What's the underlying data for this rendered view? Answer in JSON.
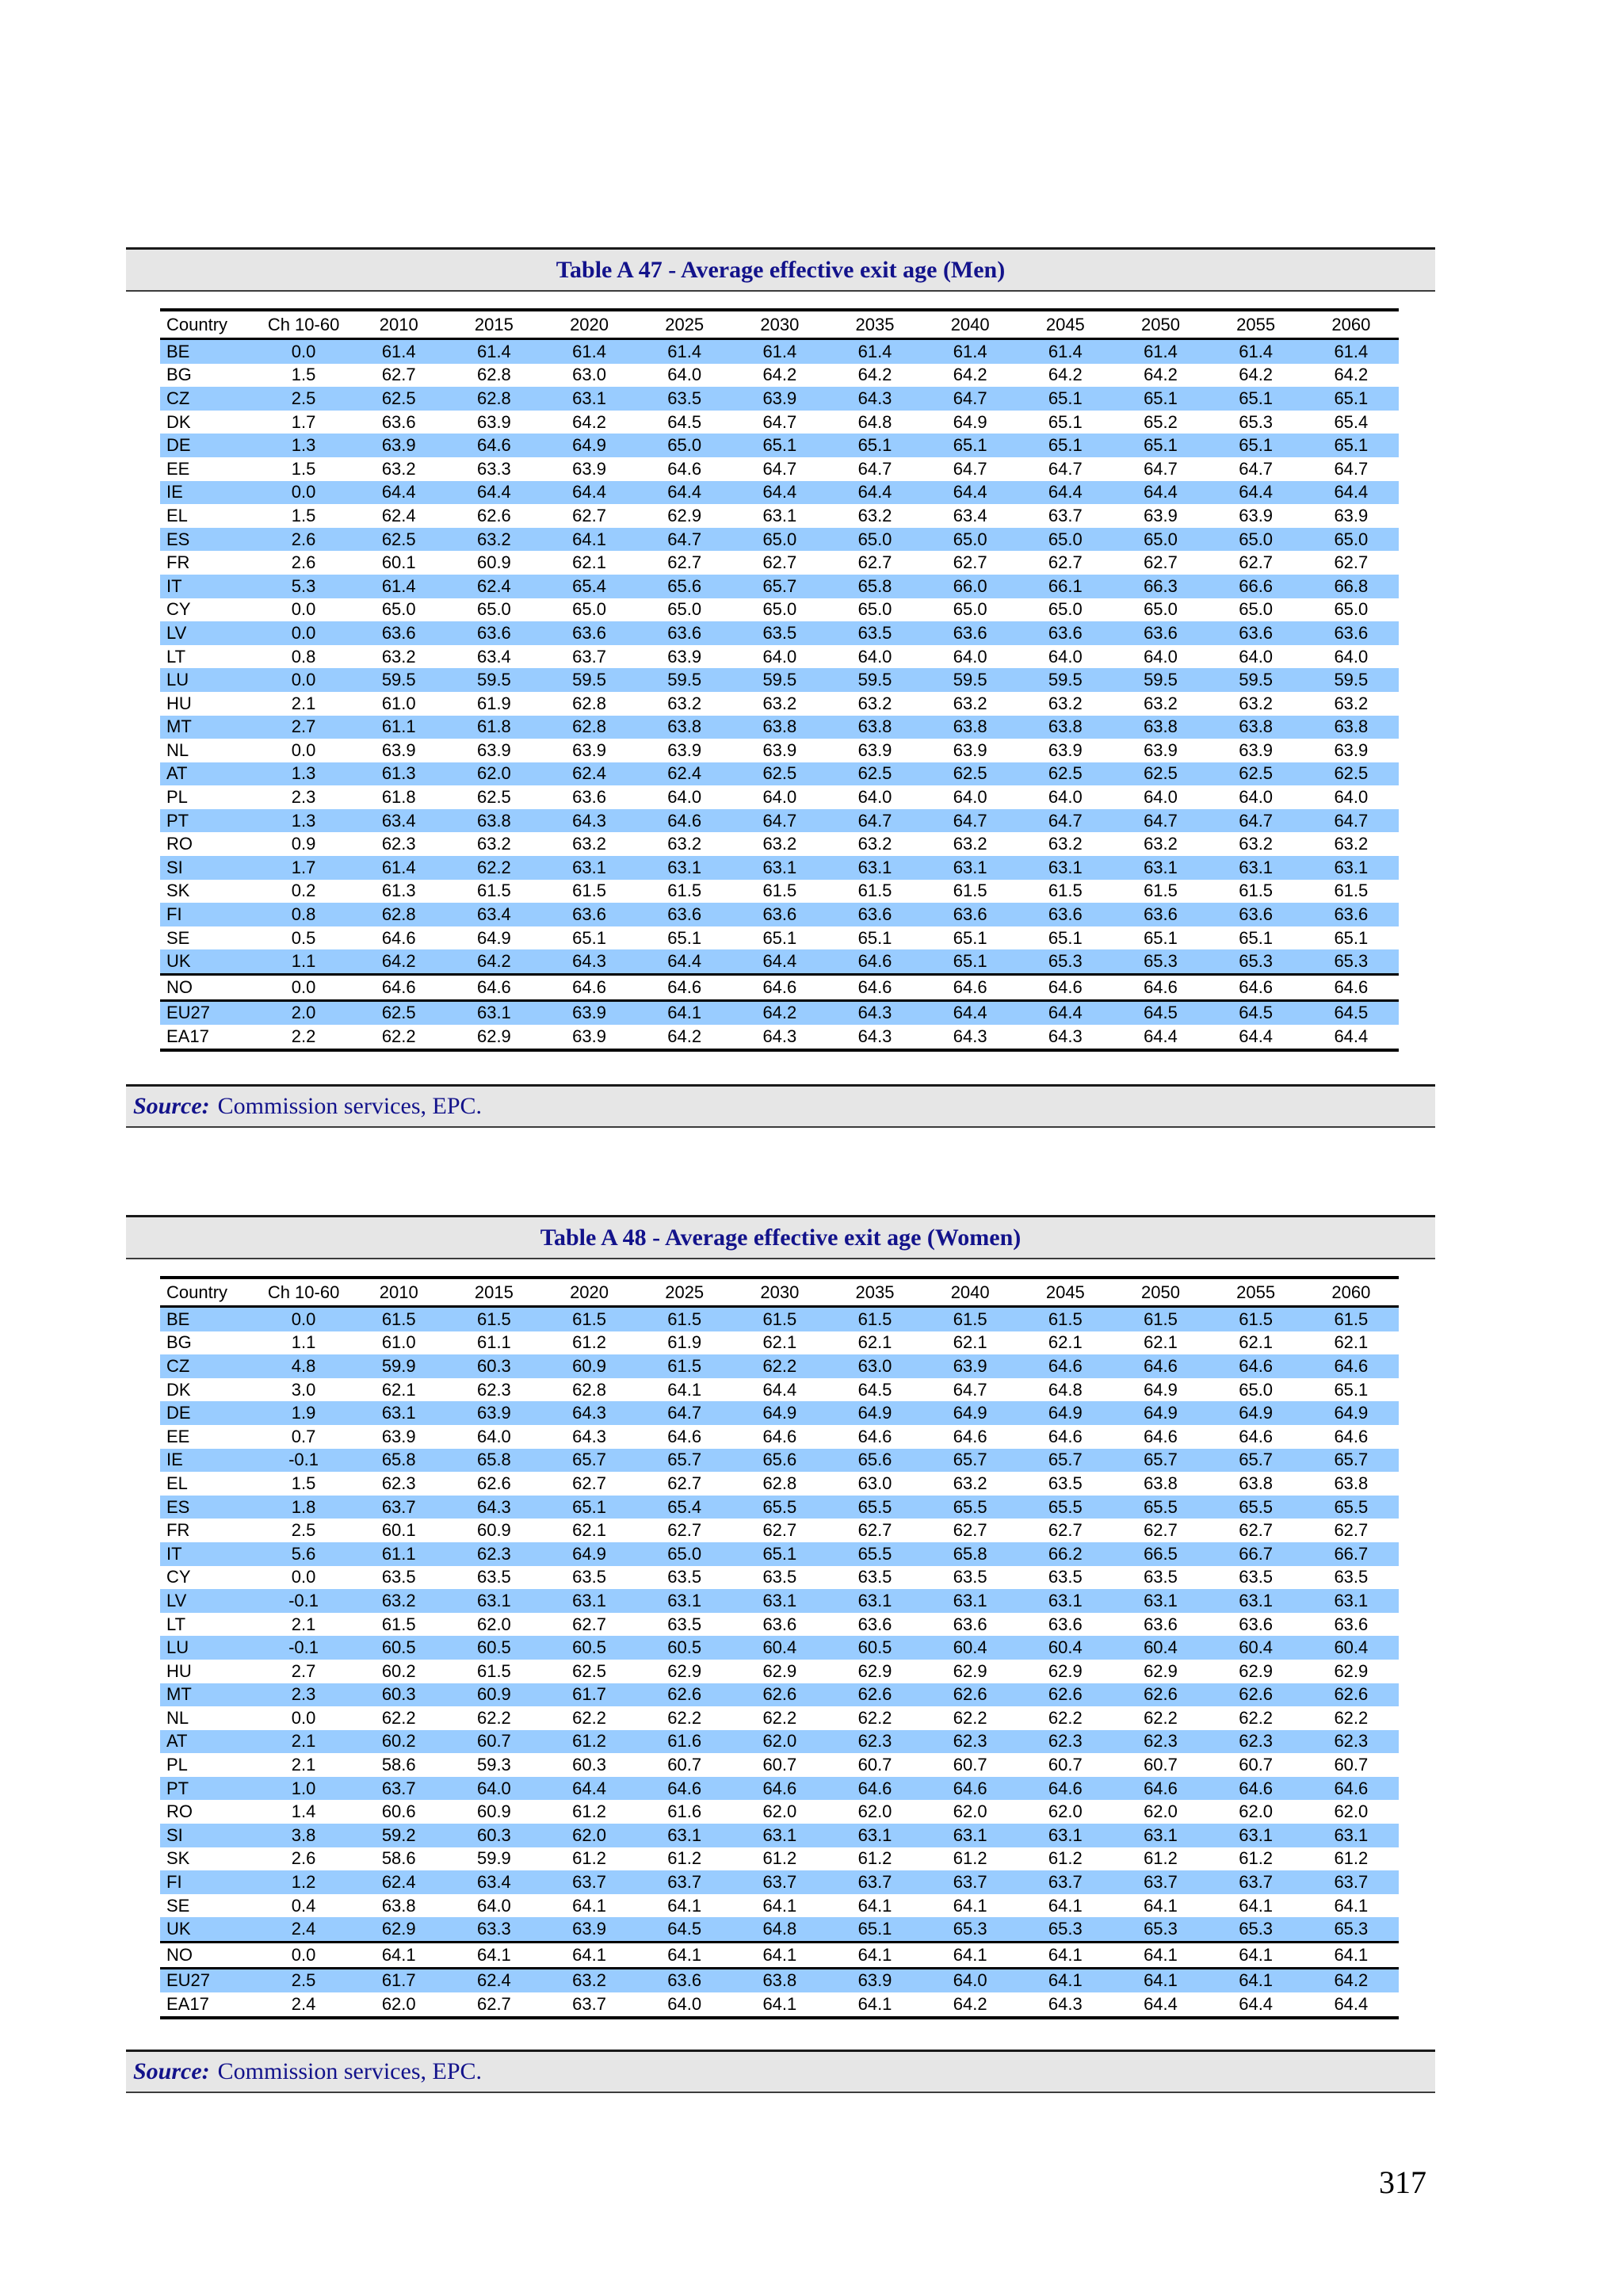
{
  "page_number": "317",
  "colors": {
    "row_highlight": "#99CCFF",
    "heading_text": "#13138B",
    "bar_background": "#E6E6E6",
    "table_text": "#000000"
  },
  "tables": [
    {
      "title": "Table A 47 - Average effective exit age (Men)",
      "source_label": "Source:",
      "source_text": "Commission services, EPC.",
      "columns": [
        "Country",
        "Ch 10-60",
        "2010",
        "2015",
        "2020",
        "2025",
        "2030",
        "2035",
        "2040",
        "2045",
        "2050",
        "2055",
        "2060"
      ],
      "separators_after": [
        "UK",
        "NO"
      ],
      "rows": [
        [
          "BE",
          "0.0",
          "61.4",
          "61.4",
          "61.4",
          "61.4",
          "61.4",
          "61.4",
          "61.4",
          "61.4",
          "61.4",
          "61.4",
          "61.4"
        ],
        [
          "BG",
          "1.5",
          "62.7",
          "62.8",
          "63.0",
          "64.0",
          "64.2",
          "64.2",
          "64.2",
          "64.2",
          "64.2",
          "64.2",
          "64.2"
        ],
        [
          "CZ",
          "2.5",
          "62.5",
          "62.8",
          "63.1",
          "63.5",
          "63.9",
          "64.3",
          "64.7",
          "65.1",
          "65.1",
          "65.1",
          "65.1"
        ],
        [
          "DK",
          "1.7",
          "63.6",
          "63.9",
          "64.2",
          "64.5",
          "64.7",
          "64.8",
          "64.9",
          "65.1",
          "65.2",
          "65.3",
          "65.4"
        ],
        [
          "DE",
          "1.3",
          "63.9",
          "64.6",
          "64.9",
          "65.0",
          "65.1",
          "65.1",
          "65.1",
          "65.1",
          "65.1",
          "65.1",
          "65.1"
        ],
        [
          "EE",
          "1.5",
          "63.2",
          "63.3",
          "63.9",
          "64.6",
          "64.7",
          "64.7",
          "64.7",
          "64.7",
          "64.7",
          "64.7",
          "64.7"
        ],
        [
          "IE",
          "0.0",
          "64.4",
          "64.4",
          "64.4",
          "64.4",
          "64.4",
          "64.4",
          "64.4",
          "64.4",
          "64.4",
          "64.4",
          "64.4"
        ],
        [
          "EL",
          "1.5",
          "62.4",
          "62.6",
          "62.7",
          "62.9",
          "63.1",
          "63.2",
          "63.4",
          "63.7",
          "63.9",
          "63.9",
          "63.9"
        ],
        [
          "ES",
          "2.6",
          "62.5",
          "63.2",
          "64.1",
          "64.7",
          "65.0",
          "65.0",
          "65.0",
          "65.0",
          "65.0",
          "65.0",
          "65.0"
        ],
        [
          "FR",
          "2.6",
          "60.1",
          "60.9",
          "62.1",
          "62.7",
          "62.7",
          "62.7",
          "62.7",
          "62.7",
          "62.7",
          "62.7",
          "62.7"
        ],
        [
          "IT",
          "5.3",
          "61.4",
          "62.4",
          "65.4",
          "65.6",
          "65.7",
          "65.8",
          "66.0",
          "66.1",
          "66.3",
          "66.6",
          "66.8"
        ],
        [
          "CY",
          "0.0",
          "65.0",
          "65.0",
          "65.0",
          "65.0",
          "65.0",
          "65.0",
          "65.0",
          "65.0",
          "65.0",
          "65.0",
          "65.0"
        ],
        [
          "LV",
          "0.0",
          "63.6",
          "63.6",
          "63.6",
          "63.6",
          "63.5",
          "63.5",
          "63.6",
          "63.6",
          "63.6",
          "63.6",
          "63.6"
        ],
        [
          "LT",
          "0.8",
          "63.2",
          "63.4",
          "63.7",
          "63.9",
          "64.0",
          "64.0",
          "64.0",
          "64.0",
          "64.0",
          "64.0",
          "64.0"
        ],
        [
          "LU",
          "0.0",
          "59.5",
          "59.5",
          "59.5",
          "59.5",
          "59.5",
          "59.5",
          "59.5",
          "59.5",
          "59.5",
          "59.5",
          "59.5"
        ],
        [
          "HU",
          "2.1",
          "61.0",
          "61.9",
          "62.8",
          "63.2",
          "63.2",
          "63.2",
          "63.2",
          "63.2",
          "63.2",
          "63.2",
          "63.2"
        ],
        [
          "MT",
          "2.7",
          "61.1",
          "61.8",
          "62.8",
          "63.8",
          "63.8",
          "63.8",
          "63.8",
          "63.8",
          "63.8",
          "63.8",
          "63.8"
        ],
        [
          "NL",
          "0.0",
          "63.9",
          "63.9",
          "63.9",
          "63.9",
          "63.9",
          "63.9",
          "63.9",
          "63.9",
          "63.9",
          "63.9",
          "63.9"
        ],
        [
          "AT",
          "1.3",
          "61.3",
          "62.0",
          "62.4",
          "62.4",
          "62.5",
          "62.5",
          "62.5",
          "62.5",
          "62.5",
          "62.5",
          "62.5"
        ],
        [
          "PL",
          "2.3",
          "61.8",
          "62.5",
          "63.6",
          "64.0",
          "64.0",
          "64.0",
          "64.0",
          "64.0",
          "64.0",
          "64.0",
          "64.0"
        ],
        [
          "PT",
          "1.3",
          "63.4",
          "63.8",
          "64.3",
          "64.6",
          "64.7",
          "64.7",
          "64.7",
          "64.7",
          "64.7",
          "64.7",
          "64.7"
        ],
        [
          "RO",
          "0.9",
          "62.3",
          "63.2",
          "63.2",
          "63.2",
          "63.2",
          "63.2",
          "63.2",
          "63.2",
          "63.2",
          "63.2",
          "63.2"
        ],
        [
          "SI",
          "1.7",
          "61.4",
          "62.2",
          "63.1",
          "63.1",
          "63.1",
          "63.1",
          "63.1",
          "63.1",
          "63.1",
          "63.1",
          "63.1"
        ],
        [
          "SK",
          "0.2",
          "61.3",
          "61.5",
          "61.5",
          "61.5",
          "61.5",
          "61.5",
          "61.5",
          "61.5",
          "61.5",
          "61.5",
          "61.5"
        ],
        [
          "FI",
          "0.8",
          "62.8",
          "63.4",
          "63.6",
          "63.6",
          "63.6",
          "63.6",
          "63.6",
          "63.6",
          "63.6",
          "63.6",
          "63.6"
        ],
        [
          "SE",
          "0.5",
          "64.6",
          "64.9",
          "65.1",
          "65.1",
          "65.1",
          "65.1",
          "65.1",
          "65.1",
          "65.1",
          "65.1",
          "65.1"
        ],
        [
          "UK",
          "1.1",
          "64.2",
          "64.2",
          "64.3",
          "64.4",
          "64.4",
          "64.6",
          "65.1",
          "65.3",
          "65.3",
          "65.3",
          "65.3"
        ],
        [
          "NO",
          "0.0",
          "64.6",
          "64.6",
          "64.6",
          "64.6",
          "64.6",
          "64.6",
          "64.6",
          "64.6",
          "64.6",
          "64.6",
          "64.6"
        ],
        [
          "EU27",
          "2.0",
          "62.5",
          "63.1",
          "63.9",
          "64.1",
          "64.2",
          "64.3",
          "64.4",
          "64.4",
          "64.5",
          "64.5",
          "64.5"
        ],
        [
          "EA17",
          "2.2",
          "62.2",
          "62.9",
          "63.9",
          "64.2",
          "64.3",
          "64.3",
          "64.3",
          "64.3",
          "64.4",
          "64.4",
          "64.4"
        ]
      ]
    },
    {
      "title": "Table A 48 - Average effective exit age (Women)",
      "source_label": "Source:",
      "source_text": "Commission services, EPC.",
      "columns": [
        "Country",
        "Ch 10-60",
        "2010",
        "2015",
        "2020",
        "2025",
        "2030",
        "2035",
        "2040",
        "2045",
        "2050",
        "2055",
        "2060"
      ],
      "separators_after": [
        "UK",
        "NO"
      ],
      "rows": [
        [
          "BE",
          "0.0",
          "61.5",
          "61.5",
          "61.5",
          "61.5",
          "61.5",
          "61.5",
          "61.5",
          "61.5",
          "61.5",
          "61.5",
          "61.5"
        ],
        [
          "BG",
          "1.1",
          "61.0",
          "61.1",
          "61.2",
          "61.9",
          "62.1",
          "62.1",
          "62.1",
          "62.1",
          "62.1",
          "62.1",
          "62.1"
        ],
        [
          "CZ",
          "4.8",
          "59.9",
          "60.3",
          "60.9",
          "61.5",
          "62.2",
          "63.0",
          "63.9",
          "64.6",
          "64.6",
          "64.6",
          "64.6"
        ],
        [
          "DK",
          "3.0",
          "62.1",
          "62.3",
          "62.8",
          "64.1",
          "64.4",
          "64.5",
          "64.7",
          "64.8",
          "64.9",
          "65.0",
          "65.1"
        ],
        [
          "DE",
          "1.9",
          "63.1",
          "63.9",
          "64.3",
          "64.7",
          "64.9",
          "64.9",
          "64.9",
          "64.9",
          "64.9",
          "64.9",
          "64.9"
        ],
        [
          "EE",
          "0.7",
          "63.9",
          "64.0",
          "64.3",
          "64.6",
          "64.6",
          "64.6",
          "64.6",
          "64.6",
          "64.6",
          "64.6",
          "64.6"
        ],
        [
          "IE",
          "-0.1",
          "65.8",
          "65.8",
          "65.7",
          "65.7",
          "65.6",
          "65.6",
          "65.7",
          "65.7",
          "65.7",
          "65.7",
          "65.7"
        ],
        [
          "EL",
          "1.5",
          "62.3",
          "62.6",
          "62.7",
          "62.7",
          "62.8",
          "63.0",
          "63.2",
          "63.5",
          "63.8",
          "63.8",
          "63.8"
        ],
        [
          "ES",
          "1.8",
          "63.7",
          "64.3",
          "65.1",
          "65.4",
          "65.5",
          "65.5",
          "65.5",
          "65.5",
          "65.5",
          "65.5",
          "65.5"
        ],
        [
          "FR",
          "2.5",
          "60.1",
          "60.9",
          "62.1",
          "62.7",
          "62.7",
          "62.7",
          "62.7",
          "62.7",
          "62.7",
          "62.7",
          "62.7"
        ],
        [
          "IT",
          "5.6",
          "61.1",
          "62.3",
          "64.9",
          "65.0",
          "65.1",
          "65.5",
          "65.8",
          "66.2",
          "66.5",
          "66.7",
          "66.7"
        ],
        [
          "CY",
          "0.0",
          "63.5",
          "63.5",
          "63.5",
          "63.5",
          "63.5",
          "63.5",
          "63.5",
          "63.5",
          "63.5",
          "63.5",
          "63.5"
        ],
        [
          "LV",
          "-0.1",
          "63.2",
          "63.1",
          "63.1",
          "63.1",
          "63.1",
          "63.1",
          "63.1",
          "63.1",
          "63.1",
          "63.1",
          "63.1"
        ],
        [
          "LT",
          "2.1",
          "61.5",
          "62.0",
          "62.7",
          "63.5",
          "63.6",
          "63.6",
          "63.6",
          "63.6",
          "63.6",
          "63.6",
          "63.6"
        ],
        [
          "LU",
          "-0.1",
          "60.5",
          "60.5",
          "60.5",
          "60.5",
          "60.4",
          "60.5",
          "60.4",
          "60.4",
          "60.4",
          "60.4",
          "60.4"
        ],
        [
          "HU",
          "2.7",
          "60.2",
          "61.5",
          "62.5",
          "62.9",
          "62.9",
          "62.9",
          "62.9",
          "62.9",
          "62.9",
          "62.9",
          "62.9"
        ],
        [
          "MT",
          "2.3",
          "60.3",
          "60.9",
          "61.7",
          "62.6",
          "62.6",
          "62.6",
          "62.6",
          "62.6",
          "62.6",
          "62.6",
          "62.6"
        ],
        [
          "NL",
          "0.0",
          "62.2",
          "62.2",
          "62.2",
          "62.2",
          "62.2",
          "62.2",
          "62.2",
          "62.2",
          "62.2",
          "62.2",
          "62.2"
        ],
        [
          "AT",
          "2.1",
          "60.2",
          "60.7",
          "61.2",
          "61.6",
          "62.0",
          "62.3",
          "62.3",
          "62.3",
          "62.3",
          "62.3",
          "62.3"
        ],
        [
          "PL",
          "2.1",
          "58.6",
          "59.3",
          "60.3",
          "60.7",
          "60.7",
          "60.7",
          "60.7",
          "60.7",
          "60.7",
          "60.7",
          "60.7"
        ],
        [
          "PT",
          "1.0",
          "63.7",
          "64.0",
          "64.4",
          "64.6",
          "64.6",
          "64.6",
          "64.6",
          "64.6",
          "64.6",
          "64.6",
          "64.6"
        ],
        [
          "RO",
          "1.4",
          "60.6",
          "60.9",
          "61.2",
          "61.6",
          "62.0",
          "62.0",
          "62.0",
          "62.0",
          "62.0",
          "62.0",
          "62.0"
        ],
        [
          "SI",
          "3.8",
          "59.2",
          "60.3",
          "62.0",
          "63.1",
          "63.1",
          "63.1",
          "63.1",
          "63.1",
          "63.1",
          "63.1",
          "63.1"
        ],
        [
          "SK",
          "2.6",
          "58.6",
          "59.9",
          "61.2",
          "61.2",
          "61.2",
          "61.2",
          "61.2",
          "61.2",
          "61.2",
          "61.2",
          "61.2"
        ],
        [
          "FI",
          "1.2",
          "62.4",
          "63.4",
          "63.7",
          "63.7",
          "63.7",
          "63.7",
          "63.7",
          "63.7",
          "63.7",
          "63.7",
          "63.7"
        ],
        [
          "SE",
          "0.4",
          "63.8",
          "64.0",
          "64.1",
          "64.1",
          "64.1",
          "64.1",
          "64.1",
          "64.1",
          "64.1",
          "64.1",
          "64.1"
        ],
        [
          "UK",
          "2.4",
          "62.9",
          "63.3",
          "63.9",
          "64.5",
          "64.8",
          "65.1",
          "65.3",
          "65.3",
          "65.3",
          "65.3",
          "65.3"
        ],
        [
          "NO",
          "0.0",
          "64.1",
          "64.1",
          "64.1",
          "64.1",
          "64.1",
          "64.1",
          "64.1",
          "64.1",
          "64.1",
          "64.1",
          "64.1"
        ],
        [
          "EU27",
          "2.5",
          "61.7",
          "62.4",
          "63.2",
          "63.6",
          "63.8",
          "63.9",
          "64.0",
          "64.1",
          "64.1",
          "64.1",
          "64.2"
        ],
        [
          "EA17",
          "2.4",
          "62.0",
          "62.7",
          "63.7",
          "64.0",
          "64.1",
          "64.1",
          "64.2",
          "64.3",
          "64.4",
          "64.4",
          "64.4"
        ]
      ]
    }
  ]
}
